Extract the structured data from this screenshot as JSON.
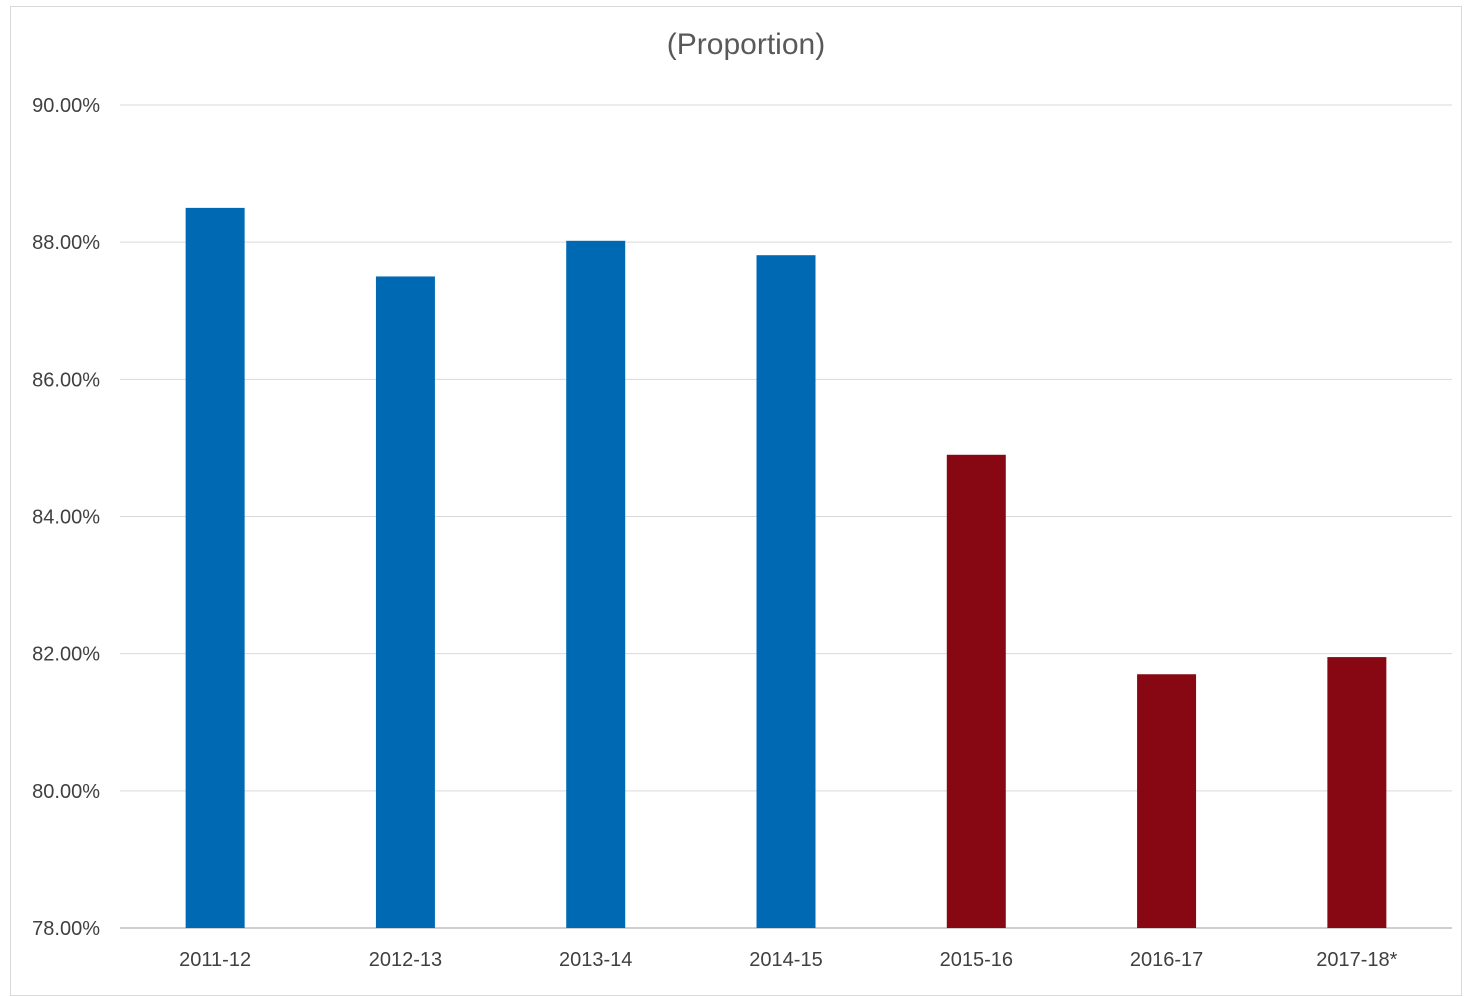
{
  "chart_data": {
    "type": "bar",
    "title": "(Proportion)",
    "xlabel": "",
    "ylabel": "",
    "categories": [
      "2011-12",
      "2012-13",
      "2013-14",
      "2014-15",
      "2015-16",
      "2016-17",
      "2017-18*"
    ],
    "values": [
      88.5,
      87.5,
      88.02,
      87.81,
      84.9,
      81.7,
      81.95
    ],
    "value_format": "percent_2dp",
    "bar_colors": [
      "#0069b4",
      "#0069b4",
      "#0069b4",
      "#0069b4",
      "#870812",
      "#870812",
      "#870812"
    ],
    "ylim": [
      78,
      90
    ],
    "yticks": [
      "78.00%",
      "80.00%",
      "82.00%",
      "84.00%",
      "86.00%",
      "88.00%",
      "90.00%"
    ],
    "grid": true,
    "legend": "none"
  }
}
